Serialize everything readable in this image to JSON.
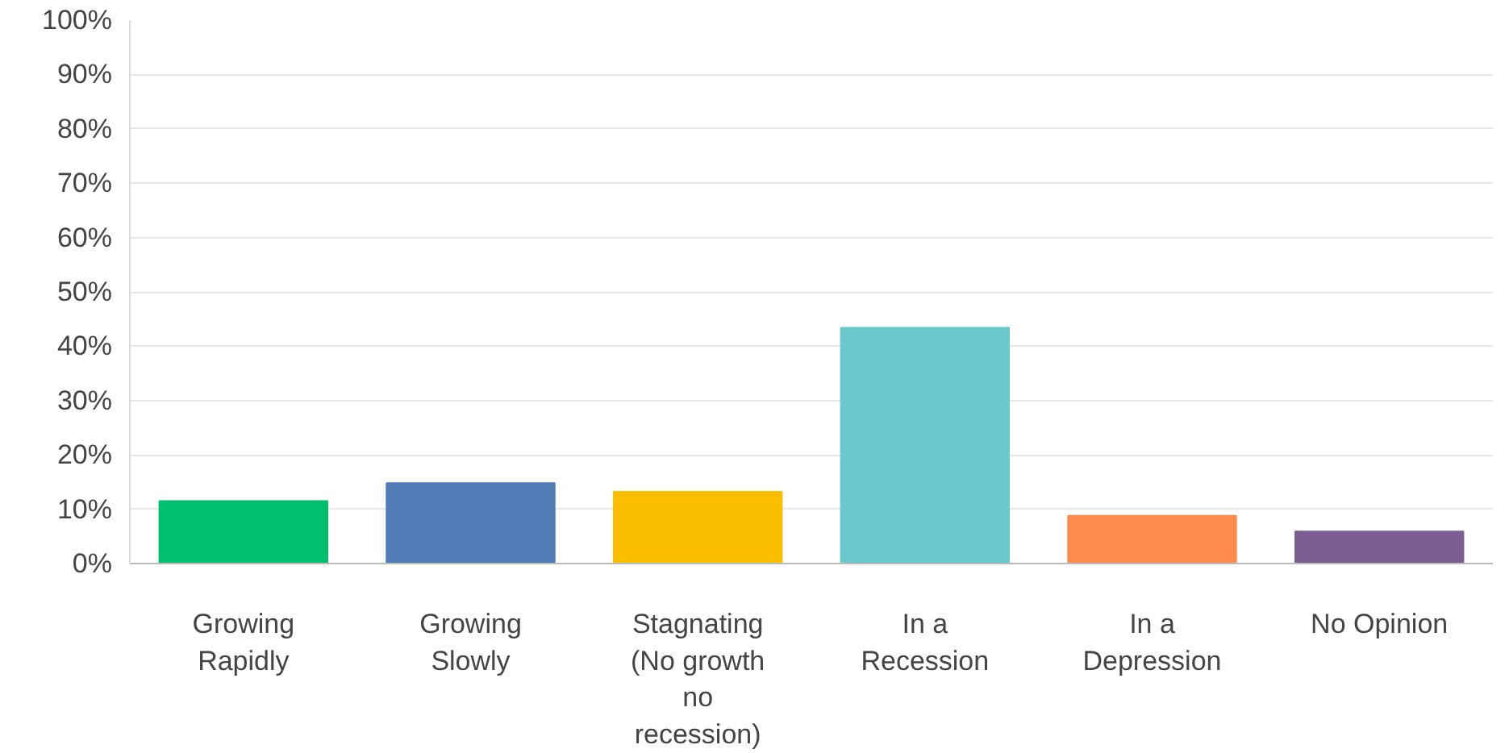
{
  "chart_data": {
    "type": "bar",
    "categories": [
      "Growing Rapidly",
      "Growing Slowly",
      "Stagnating (No growth no recession)",
      "In a Recession",
      "In a Depression",
      "No Opinion"
    ],
    "values": [
      11.5,
      14.8,
      13.2,
      43.4,
      8.8,
      5.9
    ],
    "colors": [
      "#00bf6f",
      "#507cb6",
      "#f9be00",
      "#6bc8cd",
      "#ff8b4f",
      "#7d5e90"
    ],
    "ylim": [
      0,
      100
    ],
    "yticks": [
      {
        "value": 0,
        "label": "0%"
      },
      {
        "value": 10,
        "label": "10%"
      },
      {
        "value": 20,
        "label": "20%"
      },
      {
        "value": 30,
        "label": "30%"
      },
      {
        "value": 40,
        "label": "40%"
      },
      {
        "value": 50,
        "label": "50%"
      },
      {
        "value": 60,
        "label": "60%"
      },
      {
        "value": 70,
        "label": "70%"
      },
      {
        "value": 80,
        "label": "80%"
      },
      {
        "value": 90,
        "label": "90%"
      },
      {
        "value": 100,
        "label": "100%"
      }
    ],
    "grid": "y"
  }
}
